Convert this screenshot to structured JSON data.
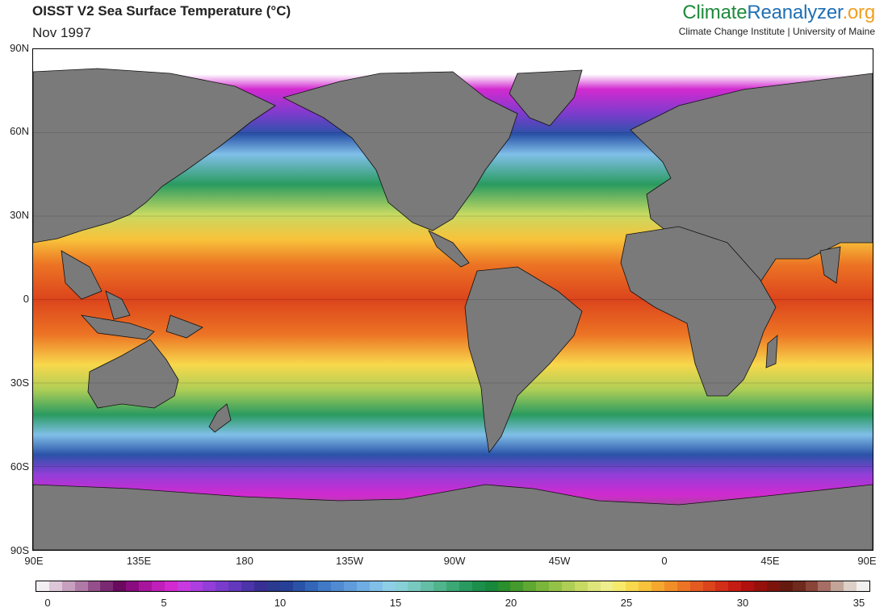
{
  "header": {
    "title": "OISST V2 Sea Surface Temperature (°C)",
    "date": "Nov 1997"
  },
  "brand": {
    "part_a": "Climate",
    "part_b": "Reanalyzer",
    "part_c": ".org",
    "tagline": "Climate Change Institute | University of Maine"
  },
  "map": {
    "lat_ticks": [
      "90N",
      "60N",
      "30N",
      "0",
      "30S",
      "60S",
      "90S"
    ],
    "lon_ticks": [
      "90E",
      "135E",
      "180",
      "135W",
      "90W",
      "45W",
      "0",
      "45E",
      "90E"
    ],
    "land_color": "#7a7a7a",
    "ice_color": "#ffffff"
  },
  "colorbar": {
    "labels": [
      "0",
      "5",
      "10",
      "15",
      "20",
      "25",
      "30",
      "35"
    ],
    "min": 0,
    "max": 35,
    "colors": [
      "#f2eef2",
      "#dcc6d8",
      "#c79fbf",
      "#b07aa6",
      "#94508a",
      "#7a2a72",
      "#6a0a5e",
      "#8a0c80",
      "#a8169e",
      "#c01fb9",
      "#d22ad0",
      "#c83ae0",
      "#ad3ee0",
      "#933ed8",
      "#7a3ccc",
      "#6438bd",
      "#4c34a9",
      "#382f94",
      "#2a3a8e",
      "#263f97",
      "#2a53a8",
      "#3366b8",
      "#4079c6",
      "#508bd2",
      "#609cdc",
      "#6eaee4",
      "#80bfe8",
      "#8ecfe6",
      "#86d0d6",
      "#78c9c0",
      "#64bfa6",
      "#50b58d",
      "#3ca876",
      "#2a9b60",
      "#1c8f4c",
      "#18883c",
      "#2a8f2c",
      "#449a2c",
      "#5fa832",
      "#7ab63b",
      "#94c248",
      "#aece56",
      "#c7da62",
      "#dee57a",
      "#efee8e",
      "#f6ea6c",
      "#f8d84c",
      "#f8c23a",
      "#f6a82e",
      "#f28e28",
      "#ec7424",
      "#e45a20",
      "#dc441c",
      "#d22e18",
      "#c41c12",
      "#b0100e",
      "#96100c",
      "#7c140c",
      "#641a0e",
      "#6e2a1c",
      "#8a4438",
      "#a66e64",
      "#c2a498",
      "#dcd0c8",
      "#f2f0ee"
    ]
  }
}
